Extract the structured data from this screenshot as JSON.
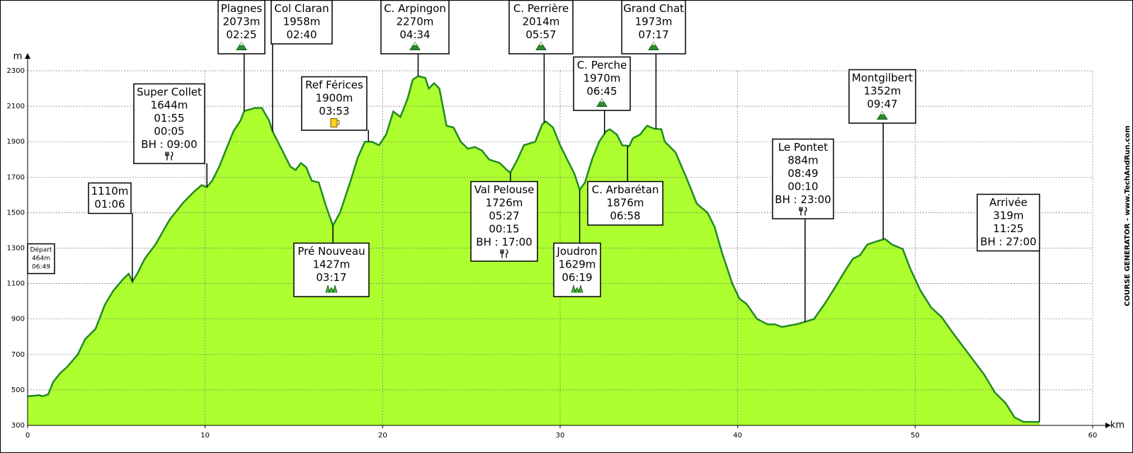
{
  "chart_data": {
    "type": "area",
    "side_text": "COURSE GENERATOR - www.TechAndRun.com",
    "xlabel": "km",
    "ylabel": "m",
    "color": "#adff2f",
    "line_color": "#228b22",
    "grid": true,
    "xlim": [
      0,
      60
    ],
    "xticks": [
      0,
      10,
      20,
      30,
      40,
      50,
      60
    ],
    "ylim": [
      300,
      2300
    ],
    "yticks": [
      300,
      500,
      700,
      900,
      1100,
      1300,
      1500,
      1700,
      1900,
      2100,
      2300
    ],
    "x": [
      0,
      0.64,
      0.84,
      1.16,
      1.44,
      1.84,
      2.23,
      2.83,
      3.23,
      3.83,
      4.35,
      4.83,
      5.42,
      5.7,
      5.9,
      6.2,
      6.6,
      7.2,
      8.0,
      8.8,
      9.4,
      9.8,
      10.1,
      10.4,
      10.8,
      11.2,
      11.6,
      12.0,
      12.2,
      12.8,
      13.2,
      13.6,
      13.8,
      14.2,
      14.8,
      15.1,
      15.4,
      15.7,
      16.0,
      16.4,
      16.8,
      17.2,
      17.6,
      18.2,
      18.6,
      19.0,
      19.4,
      19.8,
      20.2,
      20.6,
      21.0,
      21.4,
      21.7,
      22.0,
      22.4,
      22.6,
      22.9,
      23.2,
      23.6,
      24.0,
      24.4,
      24.8,
      25.2,
      25.6,
      26.0,
      26.6,
      27.0,
      27.2,
      27.6,
      27.96,
      28.6,
      29.0,
      29.2,
      29.6,
      30.0,
      30.4,
      30.8,
      31.1,
      31.4,
      31.8,
      32.2,
      32.6,
      32.8,
      33.2,
      33.5,
      33.9,
      34.1,
      34.5,
      34.9,
      35.3,
      35.7,
      35.9,
      36.5,
      37.1,
      37.7,
      38.3,
      38.7,
      39.1,
      39.7,
      40.1,
      40.5,
      41.1,
      41.7,
      42.1,
      42.5,
      42.9,
      43.3,
      43.8,
      44.3,
      44.9,
      45.5,
      46.1,
      46.5,
      46.9,
      47.3,
      47.9,
      48.3,
      48.7,
      49.3,
      49.7,
      50.3,
      50.9,
      51.5,
      52.1,
      52.7,
      53.3,
      53.9,
      54.5,
      55.1,
      55.6,
      56.1,
      57.0
    ],
    "y": [
      464,
      470,
      465,
      475,
      545,
      595,
      630,
      700,
      785,
      845,
      980,
      1060,
      1130,
      1155,
      1110,
      1160,
      1240,
      1320,
      1460,
      1560,
      1620,
      1655,
      1644,
      1680,
      1760,
      1860,
      1960,
      2020,
      2073,
      2090,
      2090,
      2020,
      1958,
      1880,
      1760,
      1740,
      1780,
      1755,
      1680,
      1670,
      1540,
      1427,
      1500,
      1680,
      1810,
      1900,
      1900,
      1880,
      1940,
      2070,
      2040,
      2140,
      2250,
      2270,
      2260,
      2200,
      2230,
      2200,
      1990,
      1980,
      1900,
      1860,
      1870,
      1850,
      1800,
      1780,
      1740,
      1726,
      1800,
      1880,
      1900,
      2000,
      2014,
      1980,
      1880,
      1800,
      1720,
      1629,
      1670,
      1800,
      1900,
      1960,
      1970,
      1940,
      1880,
      1876,
      1920,
      1940,
      1990,
      1973,
      1970,
      1900,
      1840,
      1700,
      1550,
      1500,
      1420,
      1280,
      1100,
      1015,
      985,
      900,
      870,
      870,
      855,
      863,
      870,
      884,
      900,
      985,
      1080,
      1180,
      1240,
      1260,
      1320,
      1340,
      1352,
      1320,
      1295,
      1190,
      1060,
      965,
      910,
      825,
      745,
      665,
      585,
      485,
      425,
      345,
      320,
      319
    ],
    "annotations": [
      {
        "x": 0,
        "lines": [
          "Départ",
          "464m",
          "06:49"
        ]
      },
      {
        "x": 5.9,
        "lines": [
          "1110m",
          "01:06"
        ]
      },
      {
        "x": 10.1,
        "lines": [
          "Super Collet",
          "1644m",
          "01:55",
          "00:05",
          "BH : 09:00"
        ],
        "icon": "food"
      },
      {
        "x": 12.2,
        "lines": [
          "Plagnes",
          "2073m",
          "02:25"
        ],
        "icon": "summit"
      },
      {
        "x": 13.8,
        "lines": [
          "Col Claran",
          "1958m",
          "02:40"
        ]
      },
      {
        "x": 19.2,
        "lines": [
          "Ref Férices",
          "1900m",
          "03:53"
        ],
        "icon": "drink"
      },
      {
        "x": 17.2,
        "lines": [
          "Pré Nouveau",
          "1427m",
          "03:17"
        ],
        "icon": "valley"
      },
      {
        "x": 22.0,
        "lines": [
          "C. Arpingon",
          "2270m",
          "04:34"
        ],
        "icon": "summit"
      },
      {
        "x": 27.2,
        "lines": [
          "Val Pelouse",
          "1726m",
          "05:27",
          "00:15",
          "BH : 17:00"
        ],
        "icon": "food"
      },
      {
        "x": 29.1,
        "lines": [
          "C. Perrière",
          "2014m",
          "05:57"
        ],
        "icon": "summit"
      },
      {
        "x": 31.1,
        "lines": [
          "Joudron",
          "1629m",
          "06:19"
        ],
        "icon": "valley"
      },
      {
        "x": 32.5,
        "lines": [
          "C. Perche",
          "1970m",
          "06:45"
        ],
        "icon": "summit"
      },
      {
        "x": 33.8,
        "lines": [
          "C. Arbarétan",
          "1876m",
          "06:58"
        ]
      },
      {
        "x": 35.4,
        "lines": [
          "Grand Chat",
          "1973m",
          "07:17"
        ],
        "icon": "summit"
      },
      {
        "x": 43.8,
        "lines": [
          "Le Pontet",
          "884m",
          "08:49",
          "00:10",
          "BH : 23:00"
        ],
        "icon": "food"
      },
      {
        "x": 48.2,
        "lines": [
          "Montgilbert",
          "1352m",
          "09:47"
        ],
        "icon": "summit"
      },
      {
        "x": 57.0,
        "lines": [
          "Arrivée",
          "319m",
          "11:25",
          "BH : 27:00"
        ]
      }
    ]
  }
}
